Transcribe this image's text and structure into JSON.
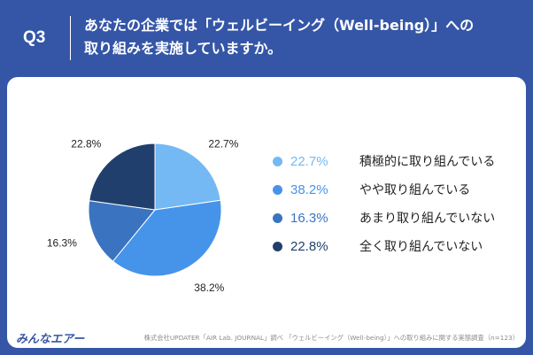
{
  "header": {
    "q_number": "Q3",
    "line1": "あなたの企業では「ウェルビーイング（Well-being）」への",
    "line2": "取り組みを実施していますか。"
  },
  "colors": {
    "background": "#3556a7",
    "card": "#ffffff",
    "slice1": "#74b8f4",
    "slice2": "#4694ea",
    "slice3": "#3a74c0",
    "slice4": "#213f6c"
  },
  "chart_data": {
    "type": "pie",
    "title": "あなたの企業では「ウェルビーイング（Well-being）」への取り組みを実施していますか。",
    "start": "12 o'clock, clockwise",
    "slices": [
      {
        "label": "積極的に取り組んでいる",
        "value": 22.7,
        "value_label": "22.7%",
        "color": "#74b8f4"
      },
      {
        "label": "やや取り組んでいる",
        "value": 38.2,
        "value_label": "38.2%",
        "color": "#4694ea"
      },
      {
        "label": "あまり取り組んでいない",
        "value": 16.3,
        "value_label": "16.3%",
        "color": "#3a74c0"
      },
      {
        "label": "全く取り組んでいない",
        "value": 22.8,
        "value_label": "22.8%",
        "color": "#213f6c"
      }
    ]
  },
  "legend": {
    "items": [
      {
        "pct": "22.7%",
        "label": "積極的に取り組んでいる"
      },
      {
        "pct": "38.2%",
        "label": "やや取り組んでいる"
      },
      {
        "pct": "16.3%",
        "label": "あまり取り組んでいない"
      },
      {
        "pct": "22.8%",
        "label": "全く取り組んでいない"
      }
    ]
  },
  "footer": {
    "logo": "みんなエアー",
    "source": "株式会社UPDATER「AIR Lab. JOURNAL」調べ 「ウェルビーイング（Well-being）」への取り組みに関する実態調査（n=123）"
  }
}
